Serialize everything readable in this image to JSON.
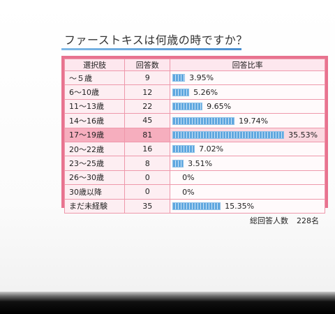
{
  "title": "ファーストキスは何歳の時ですか？",
  "table": {
    "headers": [
      "選択肢",
      "回答数",
      "回答比率"
    ],
    "rows": [
      {
        "choice": "～５歳",
        "count": "9",
        "ratio": "3.95%",
        "fraction": 0.0395
      },
      {
        "choice": "6～10歳",
        "count": "12",
        "ratio": "5.26%",
        "fraction": 0.0526
      },
      {
        "choice": "11～13歳",
        "count": "22",
        "ratio": "9.65%",
        "fraction": 0.0965
      },
      {
        "choice": "14～16歳",
        "count": "45",
        "ratio": "19.74%",
        "fraction": 0.1974
      },
      {
        "choice": "17～19歳",
        "count": "81",
        "ratio": "35.53%",
        "fraction": 0.3553,
        "highlight": true
      },
      {
        "choice": "20～22歳",
        "count": "16",
        "ratio": "7.02%",
        "fraction": 0.0702
      },
      {
        "choice": "23～25歳",
        "count": "8",
        "ratio": "3.51%",
        "fraction": 0.0351
      },
      {
        "choice": "26～30歳",
        "count": "0",
        "ratio": "0%",
        "fraction": 0
      },
      {
        "choice": "30歳以降",
        "count": "0",
        "ratio": "0%",
        "fraction": 0
      },
      {
        "choice": "まだ未経験",
        "count": "35",
        "ratio": "15.35%",
        "fraction": 0.1535
      }
    ]
  },
  "total": {
    "label": "総回答人数",
    "value": "228名"
  },
  "colors": {
    "frame": "#e8738f",
    "highlight_row": "#f6aebe",
    "bar": "#5fa7df",
    "underline": "#4a8fd0"
  }
}
